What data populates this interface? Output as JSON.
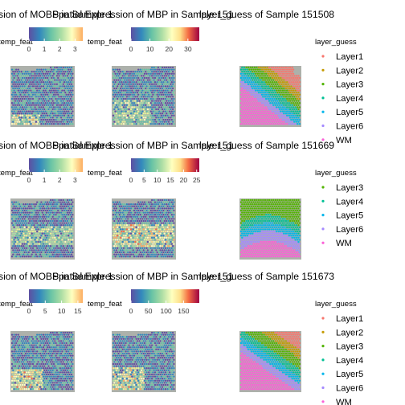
{
  "chart_data": [
    {
      "type": "heatmap",
      "sample": "151508",
      "titles": [
        "sion of MOBP in Sample 1",
        "Spatial Expression of MBP in Sample 151",
        "layer_guess of Sample 151508"
      ],
      "legend1": {
        "title": "temp_feat",
        "ticks": [
          "0",
          "1",
          "2",
          "3"
        ],
        "range": [
          0,
          3.5
        ]
      },
      "legend2": {
        "title": "temp_feat",
        "ticks": [
          "0",
          "10",
          "20",
          "30"
        ],
        "range": [
          0,
          36
        ]
      },
      "legend3": {
        "title": "layer_guess",
        "items": [
          "Layer1",
          "Layer2",
          "Layer3",
          "Layer4",
          "Layer5",
          "Layer6",
          "WM"
        ]
      }
    },
    {
      "type": "heatmap",
      "sample": "151669",
      "titles": [
        "sion of MOBP in Sample 1",
        "Spatial Expression of MBP in Sample 151",
        "layer_guess of Sample 151669"
      ],
      "legend1": {
        "title": "temp_feat",
        "ticks": [
          "0",
          "1",
          "2",
          "3"
        ],
        "range": [
          0,
          3.5
        ]
      },
      "legend2": {
        "title": "temp_feat",
        "ticks": [
          "0",
          "5",
          "10",
          "15",
          "20",
          "25"
        ],
        "range": [
          0,
          26
        ]
      },
      "legend3": {
        "title": "layer_guess",
        "items": [
          "Layer3",
          "Layer4",
          "Layer5",
          "Layer6",
          "WM"
        ]
      }
    },
    {
      "type": "heatmap",
      "sample": "151673",
      "titles": [
        "sion of MOBP in Sample 1",
        "Spatial Expression of MBP in Sample 151",
        "layer_guess of Sample 151673"
      ],
      "legend1": {
        "title": "temp_feat",
        "ticks": [
          "0",
          "5",
          "10",
          "15"
        ],
        "range": [
          0,
          16.5
        ]
      },
      "legend2": {
        "title": "temp_feat",
        "ticks": [
          "0",
          "50",
          "100",
          "150"
        ],
        "range": [
          0,
          195
        ]
      },
      "legend3": {
        "title": "layer_guess",
        "items": [
          "Layer1",
          "Layer2",
          "Layer3",
          "Layer4",
          "Layer5",
          "Layer6",
          "WM"
        ]
      }
    }
  ],
  "colors": {
    "Layer1": "#F8766D",
    "Layer2": "#C49A00",
    "Layer3": "#53B400",
    "Layer4": "#00C094",
    "Layer5": "#00B6EB",
    "Layer6": "#A58AFF",
    "WM": "#FB61D7",
    "tissue_bg": "#ADB1AB",
    "spectral": [
      "#5E4FA2",
      "#3288BD",
      "#66C2A5",
      "#ABDDA4",
      "#E6F598",
      "#FFFFBF",
      "#FEE08B",
      "#FDAE61",
      "#F46D43",
      "#D53E4F",
      "#9E0142"
    ]
  }
}
